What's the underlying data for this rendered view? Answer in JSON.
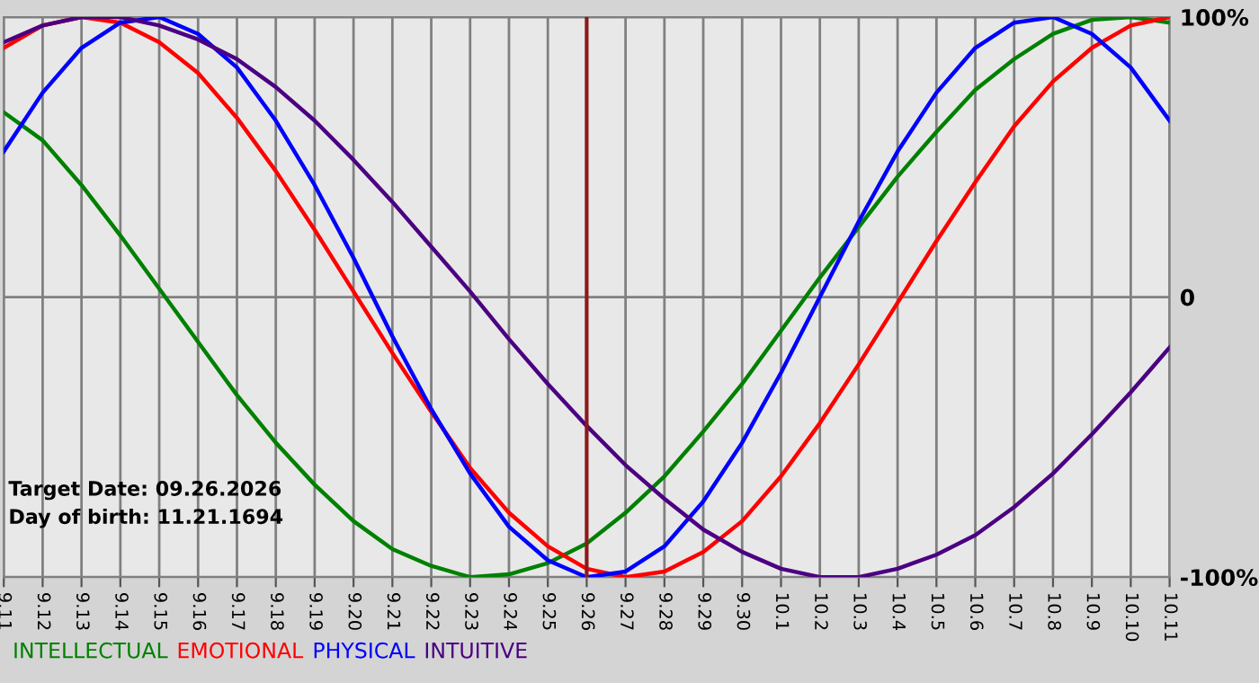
{
  "chart_data": {
    "type": "line",
    "categories": [
      "9.11",
      "9.12",
      "9.13",
      "9.14",
      "9.15",
      "9.16",
      "9.17",
      "9.18",
      "9.19",
      "9.20",
      "9.21",
      "9.22",
      "9.23",
      "9.24",
      "9.25",
      "9.26",
      "9.27",
      "9.28",
      "9.29",
      "9.30",
      "10.1",
      "10.2",
      "10.3",
      "10.4",
      "10.5",
      "10.6",
      "10.7",
      "10.8",
      "10.9",
      "10.10",
      "10.11"
    ],
    "series": [
      {
        "name": "INTELLECTUAL",
        "color": "#008000",
        "values": [
          66,
          56,
          40,
          22,
          3,
          -16,
          -35,
          -52,
          -67,
          -80,
          -90,
          -96,
          -100,
          -99,
          -95,
          -88,
          -77,
          -64,
          -48,
          -31,
          -12,
          7,
          25,
          43,
          59,
          74,
          85,
          94,
          99,
          100,
          98
        ]
      },
      {
        "name": "EMOTIONAL",
        "color": "#ff0000",
        "values": [
          89,
          97,
          100,
          98,
          91,
          80,
          64,
          45,
          24,
          2,
          -20,
          -41,
          -61,
          -77,
          -89,
          -97,
          -100,
          -98,
          -91,
          -80,
          -64,
          -45,
          -24,
          -2,
          20,
          41,
          61,
          77,
          89,
          97,
          100
        ]
      },
      {
        "name": "PHYSICAL",
        "color": "#0000ff",
        "values": [
          52,
          73,
          89,
          98,
          100,
          94,
          82,
          63,
          40,
          14,
          -14,
          -40,
          -63,
          -82,
          -94,
          -100,
          -98,
          -89,
          -73,
          -52,
          -27,
          0,
          27,
          52,
          73,
          89,
          98,
          100,
          94,
          82,
          63
        ]
      },
      {
        "name": "INTUITIVE",
        "color": "#4b0082",
        "values": [
          91,
          97,
          100,
          100,
          97,
          92,
          85,
          75,
          63,
          49,
          34,
          18,
          2,
          -15,
          -31,
          -46,
          -60,
          -72,
          -83,
          -91,
          -97,
          -100,
          -100,
          -97,
          -92,
          -85,
          -75,
          -63,
          -49,
          -34,
          -18
        ]
      }
    ],
    "ylim": [
      -100,
      100
    ],
    "yticks": [
      {
        "value": 100,
        "label": "100%"
      },
      0,
      {
        "value": -100,
        "label": "-100%"
      }
    ],
    "ref_lines": [
      {
        "axis": "x",
        "value": "9.26",
        "color": "#8b1a1a"
      }
    ],
    "annotations": [
      "Target Date: 09.26.2026",
      "Day of birth: 11.21.1694"
    ],
    "grid": true,
    "legend": "bottom",
    "marker": "none",
    "line_style": "solid"
  }
}
